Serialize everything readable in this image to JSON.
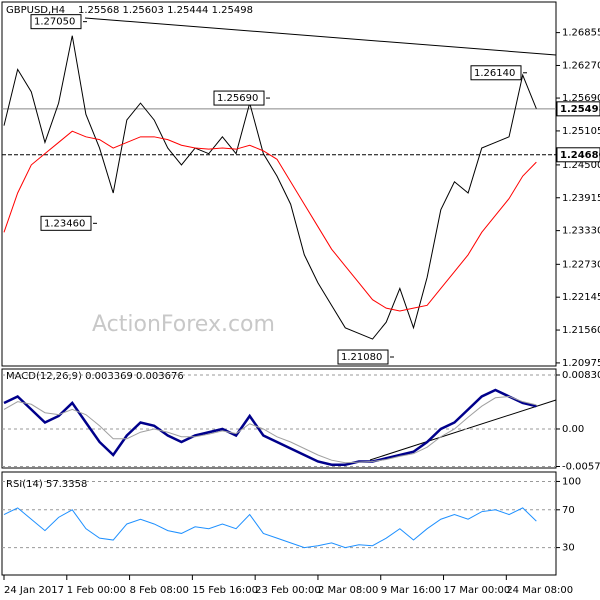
{
  "chart_data": [
    {
      "type": "line",
      "title": "GBPUSD,H4",
      "subtitle": "1.25568 1.25603 1.25444 1.25498",
      "watermark": "ActionForex.com",
      "x": [
        0,
        1,
        2,
        3,
        4,
        5,
        6,
        7,
        8,
        9,
        10,
        11,
        12,
        13,
        14,
        15,
        16,
        17,
        18,
        19,
        20,
        21,
        22,
        23,
        24,
        25,
        26,
        27,
        28,
        29,
        30,
        31,
        32,
        33,
        34,
        35,
        36,
        37,
        38,
        39
      ],
      "xlim": [
        0,
        40
      ],
      "series": [
        {
          "name": "GBPUSD",
          "color": "#000000",
          "values": [
            1.252,
            1.262,
            1.258,
            1.249,
            1.256,
            1.268,
            1.254,
            1.248,
            1.24,
            1.253,
            1.256,
            1.253,
            1.248,
            1.245,
            1.248,
            1.247,
            1.25,
            1.247,
            1.256,
            1.247,
            1.243,
            1.238,
            1.229,
            1.224,
            1.22,
            1.216,
            1.215,
            1.214,
            1.217,
            1.223,
            1.216,
            1.225,
            1.237,
            1.242,
            1.24,
            1.248,
            1.249,
            1.25,
            1.261,
            1.255
          ]
        },
        {
          "name": "MA",
          "color": "#ff0000",
          "values": [
            1.233,
            1.24,
            1.245,
            1.247,
            1.249,
            1.251,
            1.25,
            1.2495,
            1.248,
            1.249,
            1.25,
            1.25,
            1.2495,
            1.2485,
            1.248,
            1.2478,
            1.248,
            1.2478,
            1.2485,
            1.2475,
            1.246,
            1.242,
            1.238,
            1.234,
            1.23,
            1.227,
            1.224,
            1.221,
            1.2195,
            1.219,
            1.2195,
            1.22,
            1.223,
            1.226,
            1.229,
            1.233,
            1.236,
            1.239,
            1.243,
            1.2455
          ]
        }
      ],
      "ylim": [
        1.2092,
        1.274
      ],
      "yticks": [
        1.26855,
        {
          "value": 1.2627,
          "label": "1.26270"
        },
        {
          "value": 1.2569,
          "label": "1.25690"
        },
        1.25105,
        {
          "value": 1.245,
          "label": "1.24500"
        },
        1.23915,
        {
          "value": 1.2333,
          "label": "1.23330"
        },
        {
          "value": 1.2273,
          "label": "1.22730"
        },
        1.22145,
        {
          "value": 1.2156,
          "label": "1.21560"
        },
        1.20975
      ],
      "annotations": [
        {
          "value": 1.2705,
          "label": "1.27050"
        },
        {
          "value": 1.2569,
          "label": "1.25690"
        },
        {
          "value": 1.2614,
          "label": "1.26140"
        },
        {
          "value": 1.2346,
          "label": "1.23460"
        },
        {
          "value": 1.2108,
          "label": "1.21080"
        }
      ],
      "last_price": {
        "value": 1.25498,
        "label": "1.25498"
      },
      "level": {
        "value": 1.2468,
        "label": "1.24680"
      }
    },
    {
      "type": "line",
      "title": "MACD(12,26,9) 0.003369 0.003676",
      "x": [
        0,
        1,
        2,
        3,
        4,
        5,
        6,
        7,
        8,
        9,
        10,
        11,
        12,
        13,
        14,
        15,
        16,
        17,
        18,
        19,
        20,
        21,
        22,
        23,
        24,
        25,
        26,
        27,
        28,
        29,
        30,
        31,
        32,
        33,
        34,
        35,
        36,
        37,
        38,
        39
      ],
      "xlim": [
        0,
        40
      ],
      "series": [
        {
          "name": "MACD",
          "color": "#00008b",
          "values": [
            0.004,
            0.005,
            0.003,
            0.001,
            0.002,
            0.004,
            0.001,
            -0.002,
            -0.004,
            -0.001,
            0.001,
            0.0005,
            -0.001,
            -0.002,
            -0.001,
            -0.0005,
            0.0,
            -0.001,
            0.002,
            -0.001,
            -0.002,
            -0.003,
            -0.004,
            -0.005,
            -0.0055,
            -0.0055,
            -0.005,
            -0.005,
            -0.0045,
            -0.004,
            -0.0035,
            -0.002,
            0.0,
            0.001,
            0.003,
            0.005,
            0.006,
            0.005,
            0.004,
            0.0035
          ]
        },
        {
          "name": "Signal",
          "color": "#a0a0a0",
          "values": [
            0.003,
            0.0042,
            0.0038,
            0.0025,
            0.0022,
            0.003,
            0.0022,
            0.0005,
            -0.0015,
            -0.0015,
            -0.0005,
            0.0,
            -0.0005,
            -0.0012,
            -0.0012,
            -0.0008,
            -0.0003,
            -0.0007,
            0.0008,
            0.0,
            -0.0012,
            -0.002,
            -0.003,
            -0.004,
            -0.0048,
            -0.0052,
            -0.0051,
            -0.005,
            -0.0047,
            -0.0042,
            -0.0038,
            -0.0028,
            -0.0012,
            0.0,
            0.0018,
            0.0035,
            0.0048,
            0.005,
            0.0042,
            0.0037
          ]
        }
      ],
      "ylim": [
        -0.006,
        0.009223
      ],
      "yticks": [
        0.008301,
        {
          "value": 0,
          "label": "0.00"
        },
        -0.005768
      ]
    },
    {
      "type": "line",
      "title": "RSI(14) 57.3358",
      "x": [
        0,
        1,
        2,
        3,
        4,
        5,
        6,
        7,
        8,
        9,
        10,
        11,
        12,
        13,
        14,
        15,
        16,
        17,
        18,
        19,
        20,
        21,
        22,
        23,
        24,
        25,
        26,
        27,
        28,
        29,
        30,
        31,
        32,
        33,
        34,
        35,
        36,
        37,
        38,
        39
      ],
      "xlim": [
        0,
        40
      ],
      "series": [
        {
          "name": "RSI",
          "color": "#1e90ff",
          "values": [
            65,
            72,
            60,
            48,
            62,
            70,
            50,
            40,
            38,
            55,
            60,
            55,
            48,
            45,
            52,
            50,
            55,
            50,
            65,
            45,
            40,
            35,
            30,
            32,
            35,
            30,
            33,
            32,
            40,
            50,
            38,
            50,
            60,
            65,
            60,
            68,
            70,
            65,
            72,
            58
          ]
        }
      ],
      "ylim": [
        1,
        110
      ],
      "yticks": [
        100,
        70,
        30
      ],
      "xticks": [
        {
          "value": 0,
          "label": "24 Jan 2017"
        },
        {
          "value": 4.6,
          "label": "1 Feb 00:00"
        },
        {
          "value": 9.2,
          "label": "8 Feb 08:00"
        },
        {
          "value": 13.8,
          "label": "15 Feb 16:00"
        },
        {
          "value": 18.4,
          "label": "23 Feb 00:00"
        },
        {
          "value": 23,
          "label": "2 Mar 08:00"
        },
        {
          "value": 27.6,
          "label": "9 Mar 16:00"
        },
        {
          "value": 32.2,
          "label": "17 Mar 00:00"
        },
        {
          "value": 36.8,
          "label": "24 Mar 08:00"
        }
      ]
    }
  ]
}
